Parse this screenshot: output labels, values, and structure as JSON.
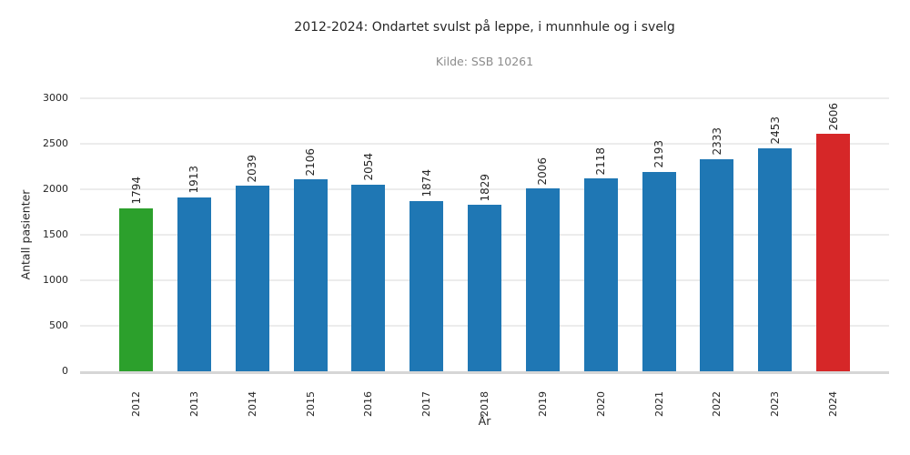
{
  "chart_data": {
    "type": "bar",
    "title": "2012-2024: Ondartet svulst på leppe, i munnhule og i svelg",
    "subtitle": "Kilde: SSB 10261",
    "xlabel": "År",
    "ylabel": "Antall pasienter",
    "categories": [
      "2012",
      "2013",
      "2014",
      "2015",
      "2016",
      "2017",
      "2018",
      "2019",
      "2020",
      "2021",
      "2022",
      "2023",
      "2024"
    ],
    "values": [
      1794,
      1913,
      2039,
      2106,
      2054,
      1874,
      1829,
      2006,
      2118,
      2193,
      2333,
      2453,
      2606
    ],
    "bar_colors": [
      "#2ca02c",
      "#1f77b4",
      "#1f77b4",
      "#1f77b4",
      "#1f77b4",
      "#1f77b4",
      "#1f77b4",
      "#1f77b4",
      "#1f77b4",
      "#1f77b4",
      "#1f77b4",
      "#1f77b4",
      "#d62728"
    ],
    "ylim": [
      0,
      3000
    ],
    "yticks": [
      0,
      500,
      1000,
      1500,
      2000,
      2500,
      3000
    ],
    "grid": "horizontal",
    "legend": "none",
    "bar_value_labels_rotation": 90,
    "x_tick_rotation": 90,
    "colors": {
      "default_bar": "#1f77b4",
      "first_bar_highlight": "#2ca02c",
      "last_bar_highlight": "#d62728",
      "gridline": "#ececec",
      "axis_line": "#d6d6d6",
      "text": "#262626",
      "subtitle_text": "#8c8c8c",
      "background": "#ffffff"
    }
  }
}
